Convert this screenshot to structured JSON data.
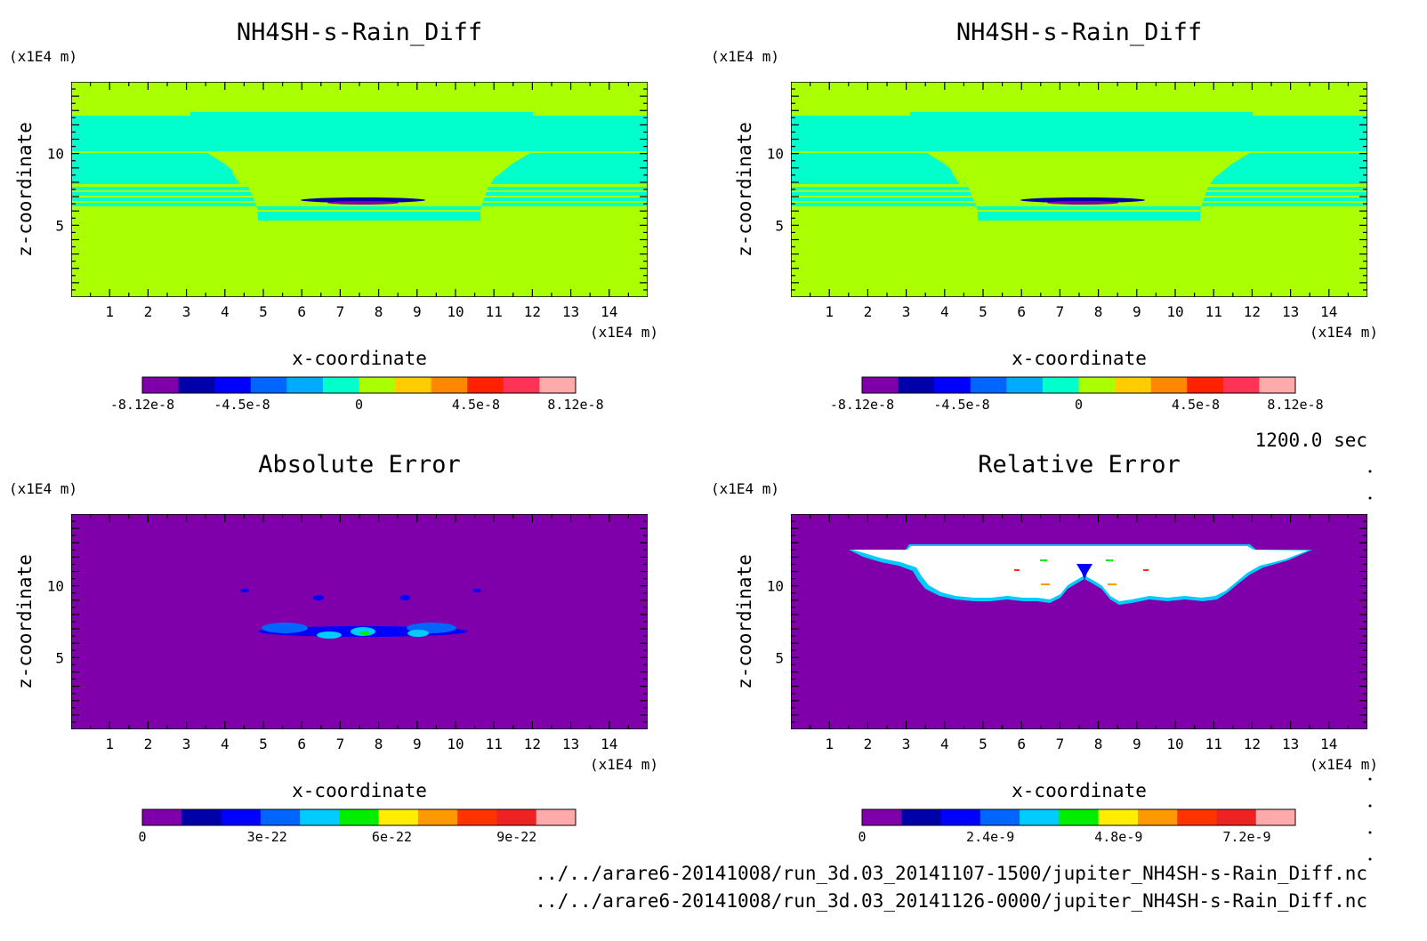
{
  "time_label": "1200.0 sec",
  "footer": {
    "line1": "../../arare6-20141008/run_3d.03_20141107-1500/jupiter_NH4SH-s-Rain_Diff.nc",
    "line2": "../../arare6-20141008/run_3d.03_20141126-0000/jupiter_NH4SH-s-Rain_Diff.nc"
  },
  "colors": {
    "background": "#ffffff",
    "panel_fill_field": "#aaff00",
    "panel_fill_error": "#7f00aa",
    "band_cyan": "#00ffcc",
    "plume_white": "#ffffff"
  },
  "chart_data": [
    {
      "type": "heatmap",
      "title": "NH4SH-s-Rain_Diff",
      "xlabel": "x-coordinate",
      "ylabel": "z-coordinate",
      "x_unit": "(x1E4 m)",
      "y_unit": "(x1E4 m)",
      "xlim": [
        0,
        15
      ],
      "ylim": [
        0,
        15
      ],
      "x_ticks": [
        "1",
        "2",
        "3",
        "4",
        "5",
        "6",
        "7",
        "8",
        "9",
        "10",
        "11",
        "12",
        "13",
        "14"
      ],
      "y_ticks": [
        "5",
        "10"
      ],
      "colorbar": {
        "colors": [
          "#7f00aa",
          "#0000aa",
          "#0000ff",
          "#0066ff",
          "#00aaff",
          "#00ffcc",
          "#aaff00",
          "#ffcc00",
          "#ff8800",
          "#ff2200",
          "#ff3355",
          "#ffaaaa"
        ],
        "labels": [
          "-8.12e-8",
          "-4.5e-8",
          "0",
          "4.5e-8",
          "8.12e-8"
        ],
        "label_positions": [
          0,
          0.23,
          0.5,
          0.77,
          1.0
        ]
      }
    },
    {
      "type": "heatmap",
      "title": "NH4SH-s-Rain_Diff",
      "xlabel": "x-coordinate",
      "ylabel": "z-coordinate",
      "x_unit": "(x1E4 m)",
      "y_unit": "(x1E4 m)",
      "xlim": [
        0,
        15
      ],
      "ylim": [
        0,
        15
      ],
      "x_ticks": [
        "1",
        "2",
        "3",
        "4",
        "5",
        "6",
        "7",
        "8",
        "9",
        "10",
        "11",
        "12",
        "13",
        "14"
      ],
      "y_ticks": [
        "5",
        "10"
      ],
      "colorbar": {
        "colors": [
          "#7f00aa",
          "#0000aa",
          "#0000ff",
          "#0066ff",
          "#00aaff",
          "#00ffcc",
          "#aaff00",
          "#ffcc00",
          "#ff8800",
          "#ff2200",
          "#ff3355",
          "#ffaaaa"
        ],
        "labels": [
          "-8.12e-8",
          "-4.5e-8",
          "0",
          "4.5e-8",
          "8.12e-8"
        ],
        "label_positions": [
          0,
          0.23,
          0.5,
          0.77,
          1.0
        ]
      }
    },
    {
      "type": "heatmap",
      "title": "Absolute Error",
      "xlabel": "x-coordinate",
      "ylabel": "z-coordinate",
      "x_unit": "(x1E4 m)",
      "y_unit": "(x1E4 m)",
      "xlim": [
        0,
        15
      ],
      "ylim": [
        0,
        15
      ],
      "x_ticks": [
        "1",
        "2",
        "3",
        "4",
        "5",
        "6",
        "7",
        "8",
        "9",
        "10",
        "11",
        "12",
        "13",
        "14"
      ],
      "y_ticks": [
        "5",
        "10"
      ],
      "colorbar": {
        "colors": [
          "#7f00aa",
          "#0000aa",
          "#0000ff",
          "#0066ff",
          "#00ccff",
          "#00ee00",
          "#ffee00",
          "#ff9900",
          "#ff3300",
          "#ee2222",
          "#ffaaaa"
        ],
        "labels": [
          "0",
          "3e-22",
          "6e-22",
          "9e-22"
        ],
        "label_positions": [
          0,
          0.288,
          0.576,
          0.864
        ]
      }
    },
    {
      "type": "heatmap",
      "title": "Relative Error",
      "xlabel": "x-coordinate",
      "ylabel": "z-coordinate",
      "x_unit": "(x1E4 m)",
      "y_unit": "(x1E4 m)",
      "xlim": [
        0,
        15
      ],
      "ylim": [
        0,
        15
      ],
      "x_ticks": [
        "1",
        "2",
        "3",
        "4",
        "5",
        "6",
        "7",
        "8",
        "9",
        "10",
        "11",
        "12",
        "13",
        "14"
      ],
      "y_ticks": [
        "5",
        "10"
      ],
      "colorbar": {
        "colors": [
          "#7f00aa",
          "#0000aa",
          "#0000ff",
          "#0066ff",
          "#00ccff",
          "#00ee00",
          "#ffee00",
          "#ff9900",
          "#ff3300",
          "#ee2222",
          "#ffaaaa"
        ],
        "labels": [
          "0",
          "2.4e-9",
          "4.8e-9",
          "7.2e-9"
        ],
        "label_positions": [
          0,
          0.296,
          0.592,
          0.888
        ]
      }
    }
  ]
}
